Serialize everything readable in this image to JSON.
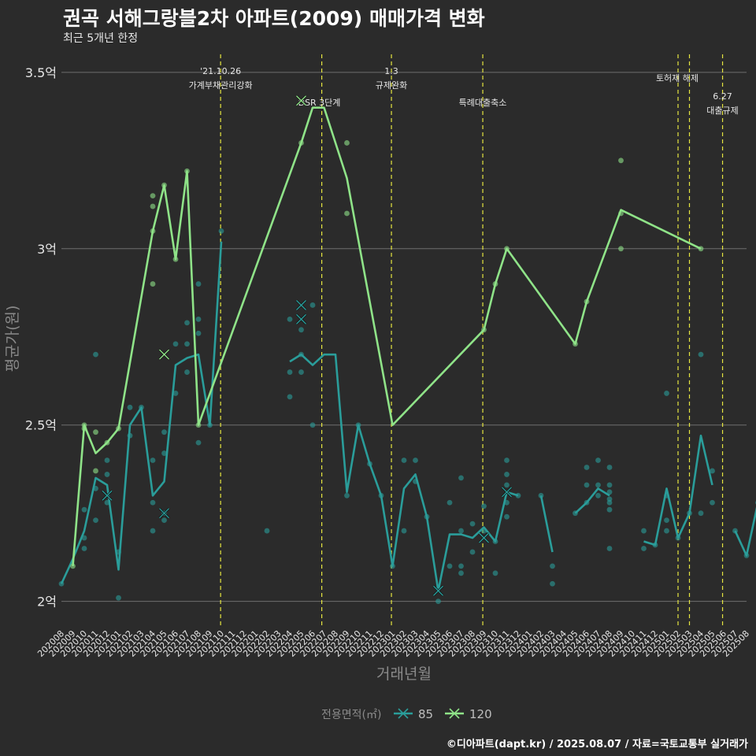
{
  "title": "권곡 서해그랑블2차 아파트(2009) 매매가격 변화",
  "subtitle": "최근 5개년 한정",
  "caption": "©디아파트(dapt.kr) / 2025.08.07 / 자료=국토교통부 실거래가",
  "colors": {
    "background": "#2b2b2b",
    "grid": "#6e6e6e",
    "text": "#e6e6e6",
    "series_85": "#2a9d9a",
    "series_120": "#8fe388",
    "event_line": "#e6e640"
  },
  "chart_data": {
    "type": "line",
    "xlabel": "거래년월",
    "ylabel": "평균가(원)",
    "x_categories": [
      "202008",
      "202009",
      "202010",
      "202011",
      "202012",
      "202101",
      "202102",
      "202103",
      "202104",
      "202105",
      "202106",
      "202107",
      "202108",
      "202109",
      "202110",
      "202111",
      "202112",
      "202201",
      "202202",
      "202203",
      "202204",
      "202205",
      "202206",
      "202207",
      "202208",
      "202209",
      "202210",
      "202211",
      "202212",
      "202301",
      "202302",
      "202303",
      "202304",
      "202305",
      "202306",
      "202307",
      "202308",
      "202309",
      "202310",
      "202311",
      "202312",
      "202401",
      "202402",
      "202403",
      "202404",
      "202405",
      "202406",
      "202407",
      "202408",
      "202409",
      "202410",
      "202411",
      "202412",
      "202501",
      "202502",
      "202503",
      "202504",
      "202505",
      "202506",
      "202507",
      "202508"
    ],
    "ylim": [
      1.93,
      3.56
    ],
    "y_ticks": [
      {
        "value": 2.0,
        "label": "2억"
      },
      {
        "value": 2.5,
        "label": "2.5억"
      },
      {
        "value": 3.0,
        "label": "3억"
      },
      {
        "value": 3.5,
        "label": "3.5억"
      }
    ],
    "legend": {
      "title": "전용면적(㎡)",
      "position": "bottom"
    },
    "series": [
      {
        "name": "85",
        "color": "#2a9d9a",
        "line": [
          [
            "202008",
            2.05
          ],
          [
            "202009",
            2.12
          ],
          [
            "202010",
            2.2
          ],
          [
            "202011",
            2.35
          ],
          [
            "202012",
            2.33
          ],
          [
            "202101",
            2.09
          ],
          [
            "202102",
            2.5
          ],
          [
            "202103",
            2.55
          ],
          [
            "202104",
            2.3
          ],
          [
            "202105",
            2.34
          ],
          [
            "202106",
            2.67
          ],
          [
            "202107",
            2.69
          ],
          [
            "202108",
            2.7
          ],
          [
            "202109",
            2.5
          ],
          [
            "202110",
            3.02
          ],
          null,
          [
            "202204",
            2.68
          ],
          [
            "202205",
            2.7
          ],
          [
            "202206",
            2.67
          ],
          [
            "202207",
            2.7
          ],
          [
            "202208",
            2.7
          ],
          [
            "202209",
            2.31
          ],
          [
            "202210",
            2.5
          ],
          [
            "202211",
            2.39
          ],
          [
            "202212",
            2.3
          ],
          [
            "202301",
            2.1
          ],
          [
            "202302",
            2.32
          ],
          [
            "202303",
            2.36
          ],
          [
            "202304",
            2.24
          ],
          [
            "202305",
            2.03
          ],
          [
            "202306",
            2.19
          ],
          [
            "202307",
            2.19
          ],
          [
            "202308",
            2.18
          ],
          [
            "202309",
            2.21
          ],
          [
            "202310",
            2.17
          ],
          [
            "202311",
            2.31
          ],
          [
            "202312",
            2.3
          ],
          null,
          [
            "202402",
            2.3
          ],
          [
            "202403",
            2.14
          ],
          null,
          [
            "202405",
            2.25
          ],
          [
            "202406",
            2.28
          ],
          [
            "202407",
            2.32
          ],
          [
            "202408",
            2.3
          ],
          null,
          [
            "202411",
            2.17
          ],
          [
            "202412",
            2.16
          ],
          [
            "202501",
            2.32
          ],
          [
            "202502",
            2.18
          ],
          [
            "202503",
            2.25
          ],
          [
            "202504",
            2.47
          ],
          [
            "202505",
            2.33
          ],
          null,
          [
            "202507",
            2.2
          ],
          [
            "202508",
            2.13
          ],
          [
            "202509",
            2.28
          ]
        ],
        "points": [
          [
            "202008",
            2.05
          ],
          [
            "202010",
            2.15
          ],
          [
            "202010",
            2.18
          ],
          [
            "202010",
            2.26
          ],
          [
            "202011",
            2.23
          ],
          [
            "202011",
            2.32
          ],
          [
            "202011",
            2.7
          ],
          [
            "202012",
            2.28
          ],
          [
            "202012",
            2.36
          ],
          [
            "202012",
            2.4
          ],
          [
            "202101",
            2.01
          ],
          [
            "202101",
            2.14
          ],
          [
            "202102",
            2.47
          ],
          [
            "202102",
            2.55
          ],
          [
            "202103",
            2.55
          ],
          [
            "202104",
            2.2
          ],
          [
            "202104",
            2.28
          ],
          [
            "202104",
            2.4
          ],
          [
            "202105",
            2.23
          ],
          [
            "202105",
            2.25
          ],
          [
            "202105",
            2.42
          ],
          [
            "202105",
            2.48
          ],
          [
            "202106",
            2.59
          ],
          [
            "202106",
            2.73
          ],
          [
            "202107",
            2.65
          ],
          [
            "202107",
            2.73
          ],
          [
            "202107",
            2.79
          ],
          [
            "202108",
            2.45
          ],
          [
            "202108",
            2.76
          ],
          [
            "202108",
            2.8
          ],
          [
            "202108",
            2.9
          ],
          [
            "202109",
            2.5
          ],
          [
            "202110",
            3.05
          ],
          [
            "202202",
            2.2
          ],
          [
            "202204",
            2.58
          ],
          [
            "202204",
            2.65
          ],
          [
            "202204",
            2.8
          ],
          [
            "202205",
            2.65
          ],
          [
            "202205",
            2.7
          ],
          [
            "202205",
            2.77
          ],
          [
            "202206",
            2.5
          ],
          [
            "202206",
            2.84
          ],
          [
            "202209",
            2.3
          ],
          [
            "202210",
            2.5
          ],
          [
            "202211",
            2.39
          ],
          [
            "202212",
            2.3
          ],
          [
            "202301",
            2.1
          ],
          [
            "202302",
            2.2
          ],
          [
            "202302",
            2.4
          ],
          [
            "202303",
            2.34
          ],
          [
            "202303",
            2.4
          ],
          [
            "202304",
            2.24
          ],
          [
            "202305",
            2.0
          ],
          [
            "202306",
            2.1
          ],
          [
            "202306",
            2.28
          ],
          [
            "202307",
            2.08
          ],
          [
            "202307",
            2.1
          ],
          [
            "202307",
            2.2
          ],
          [
            "202307",
            2.35
          ],
          [
            "202308",
            2.14
          ],
          [
            "202308",
            2.22
          ],
          [
            "202309",
            2.2
          ],
          [
            "202309",
            2.27
          ],
          [
            "202310",
            2.08
          ],
          [
            "202310",
            2.17
          ],
          [
            "202311",
            2.24
          ],
          [
            "202311",
            2.28
          ],
          [
            "202311",
            2.33
          ],
          [
            "202311",
            2.36
          ],
          [
            "202311",
            2.4
          ],
          [
            "202312",
            2.3
          ],
          [
            "202402",
            2.3
          ],
          [
            "202403",
            2.05
          ],
          [
            "202403",
            2.1
          ],
          [
            "202405",
            2.25
          ],
          [
            "202406",
            2.28
          ],
          [
            "202406",
            2.33
          ],
          [
            "202406",
            2.38
          ],
          [
            "202407",
            2.3
          ],
          [
            "202407",
            2.33
          ],
          [
            "202407",
            2.4
          ],
          [
            "202408",
            2.15
          ],
          [
            "202408",
            2.26
          ],
          [
            "202408",
            2.28
          ],
          [
            "202408",
            2.29
          ],
          [
            "202408",
            2.31
          ],
          [
            "202408",
            2.33
          ],
          [
            "202408",
            2.38
          ],
          [
            "202411",
            2.15
          ],
          [
            "202411",
            2.2
          ],
          [
            "202412",
            2.16
          ],
          [
            "202501",
            2.2
          ],
          [
            "202501",
            2.23
          ],
          [
            "202501",
            2.3
          ],
          [
            "202501",
            2.59
          ],
          [
            "202502",
            2.18
          ],
          [
            "202503",
            2.25
          ],
          [
            "202504",
            2.25
          ],
          [
            "202504",
            2.7
          ],
          [
            "202505",
            2.28
          ],
          [
            "202505",
            2.37
          ],
          [
            "202507",
            2.2
          ],
          [
            "202508",
            2.13
          ],
          [
            "202509",
            2.28
          ]
        ],
        "x_marks": [
          [
            "202012",
            2.3
          ],
          [
            "202105",
            2.25
          ],
          [
            "202205",
            2.84
          ],
          [
            "202205",
            2.8
          ],
          [
            "202305",
            2.03
          ],
          [
            "202309",
            2.18
          ],
          [
            "202311",
            2.31
          ]
        ]
      },
      {
        "name": "120",
        "color": "#8fe388",
        "line": [
          [
            "202009",
            2.1
          ],
          [
            "202010",
            2.5
          ],
          [
            "202011",
            2.42
          ],
          [
            "202012",
            2.45
          ],
          [
            "202101",
            2.49
          ],
          [
            "202104",
            3.05
          ],
          [
            "202105",
            3.18
          ],
          [
            "202106",
            2.97
          ],
          [
            "202107",
            3.22
          ],
          [
            "202108",
            2.5
          ],
          [
            "202205",
            3.3
          ],
          [
            "202206",
            3.4
          ],
          [
            "202207",
            3.4
          ],
          [
            "202209",
            3.2
          ],
          [
            "202301",
            2.5
          ],
          [
            "202309",
            2.77
          ],
          [
            "202310",
            2.9
          ],
          [
            "202311",
            3.0
          ],
          [
            "202405",
            2.73
          ],
          [
            "202406",
            2.85
          ],
          [
            "202409",
            3.11
          ],
          [
            "202504",
            3.0
          ]
        ],
        "points": [
          [
            "202009",
            2.1
          ],
          [
            "202010",
            2.49
          ],
          [
            "202010",
            2.5
          ],
          [
            "202011",
            2.37
          ],
          [
            "202011",
            2.48
          ],
          [
            "202012",
            2.45
          ],
          [
            "202101",
            2.49
          ],
          [
            "202104",
            2.9
          ],
          [
            "202104",
            3.05
          ],
          [
            "202104",
            3.12
          ],
          [
            "202104",
            3.15
          ],
          [
            "202105",
            3.18
          ],
          [
            "202106",
            2.97
          ],
          [
            "202107",
            3.22
          ],
          [
            "202108",
            2.5
          ],
          [
            "202205",
            3.3
          ],
          [
            "202209",
            3.1
          ],
          [
            "202209",
            3.3
          ],
          [
            "202309",
            2.77
          ],
          [
            "202310",
            2.9
          ],
          [
            "202311",
            3.0
          ],
          [
            "202405",
            2.73
          ],
          [
            "202406",
            2.85
          ],
          [
            "202409",
            3.0
          ],
          [
            "202409",
            3.1
          ],
          [
            "202409",
            3.25
          ],
          [
            "202504",
            3.0
          ]
        ],
        "x_marks": [
          [
            "202105",
            2.7
          ],
          [
            "202205",
            3.42
          ]
        ]
      }
    ],
    "events": [
      {
        "x": 13.94,
        "lines": [
          "'21.10.26",
          "가계부채관리강화"
        ]
      },
      {
        "x": 22.8,
        "lines": [
          "DSR 3단계"
        ]
      },
      {
        "x": 28.9,
        "lines": [
          "1.3",
          "규제완화"
        ]
      },
      {
        "x": 36.9,
        "lines": [
          "특례대출축소"
        ]
      },
      {
        "x": 54.0,
        "lines": [
          "토허제 해제"
        ]
      },
      {
        "x": 55.0,
        "lines": []
      },
      {
        "x": 57.9,
        "lines": [
          "6.27",
          "대출규제"
        ]
      }
    ]
  }
}
